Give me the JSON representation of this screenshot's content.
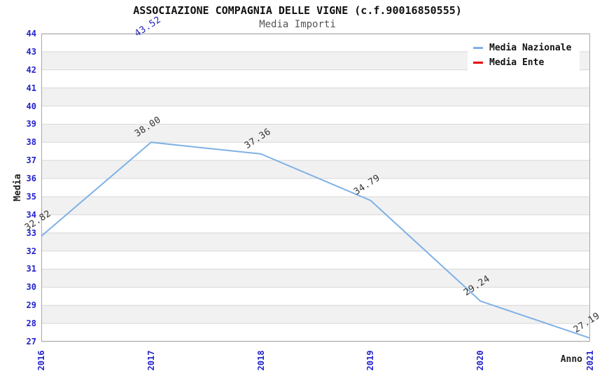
{
  "header": {
    "title": "ASSOCIAZIONE COMPAGNIA DELLE VIGNE (c.f.90016850555)",
    "subtitle": "Media Importi"
  },
  "legend": {
    "items": [
      {
        "label": "Media Nazionale",
        "color": "#7fb1e6"
      },
      {
        "label": "Media Ente",
        "color": "#e60000"
      }
    ]
  },
  "chart_data": {
    "type": "line",
    "title": "ASSOCIAZIONE COMPAGNIA DELLE VIGNE (c.f.90016850555)",
    "subtitle": "Media Importi",
    "xlabel": "Anno",
    "ylabel": "Media",
    "x": [
      2016,
      2017,
      2018,
      2019,
      2020,
      2021
    ],
    "series": [
      {
        "name": "Media Nazionale",
        "color": "#7fb1e6",
        "line_visible": true,
        "values": [
          32.82,
          38.0,
          37.36,
          34.79,
          29.24,
          27.19
        ],
        "point_labels": [
          "32.82",
          "38.00",
          "37.36",
          "34.79",
          "29.24",
          "27.19"
        ],
        "label_color": "#333333"
      },
      {
        "name": "Media Ente",
        "color": "#e60000",
        "line_visible": false,
        "values": [
          null,
          43.52,
          null,
          null,
          null,
          null
        ],
        "point_labels": [
          null,
          "43.52",
          null,
          null,
          null,
          null
        ],
        "label_color": "#2222bb"
      }
    ],
    "ylim": [
      27,
      44
    ],
    "ytick_step": 1,
    "yticks": [
      27,
      28,
      29,
      30,
      31,
      32,
      33,
      34,
      35,
      36,
      37,
      38,
      39,
      40,
      41,
      42,
      43,
      44
    ],
    "grid": "horizontal-alternating-bands",
    "legend_position": "top-right",
    "theme": {
      "tick_label_color": "#2222cc",
      "band_colors": [
        "#ffffff",
        "#f1f1f1"
      ],
      "gridline_color": "#d8d8d8",
      "plot_border_color": "#a8a8a8",
      "axis_title_color": "#222222"
    }
  }
}
